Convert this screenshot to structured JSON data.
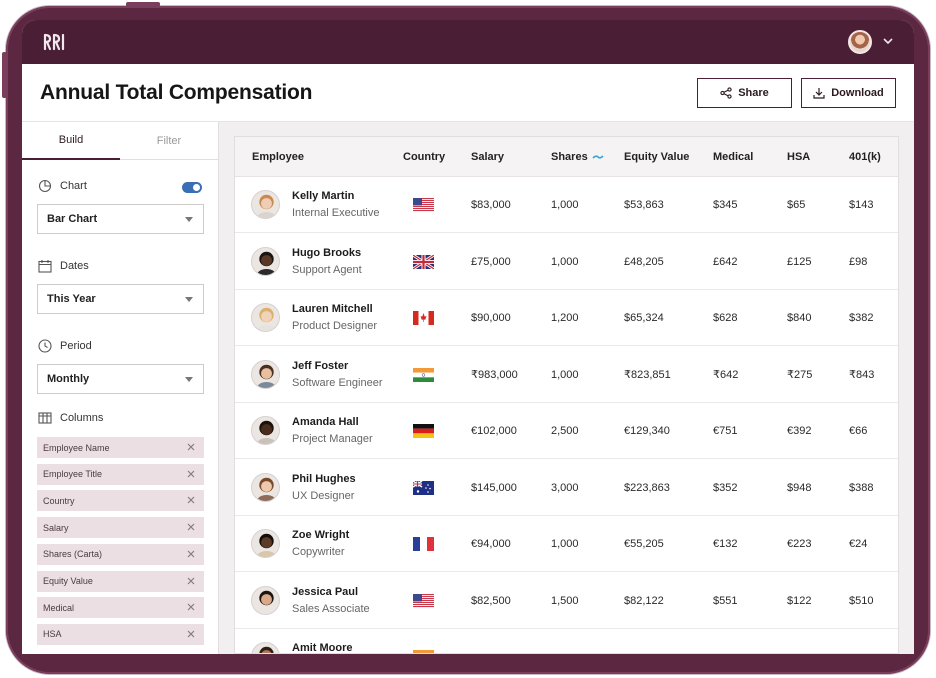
{
  "header": {
    "title": "Annual Total Compensation",
    "share_label": "Share",
    "download_label": "Download"
  },
  "sidebar": {
    "tabs": [
      "Build",
      "Filter"
    ],
    "chart_label": "Chart",
    "chart_toggle_on": true,
    "chart_value": "Bar Chart",
    "dates_label": "Dates",
    "dates_value": "This Year",
    "period_label": "Period",
    "period_value": "Monthly",
    "columns_label": "Columns",
    "columns": [
      "Employee Name",
      "Employee Title",
      "Country",
      "Salary",
      "Shares (Carta)",
      "Equity Value",
      "Medical",
      "HSA"
    ]
  },
  "table": {
    "headers": [
      "Employee",
      "Country",
      "Salary",
      "Shares",
      "Equity Value",
      "Medical",
      "HSA",
      "401(k)"
    ],
    "rows": [
      {
        "name": "Kelly Martin",
        "title": "Internal Executive",
        "country_flag": "us-flag-icon",
        "salary": "$83,000",
        "shares": "1,000",
        "equity": "$53,863",
        "medical": "$345",
        "hsa": "$65",
        "k401": "$143"
      },
      {
        "name": "Hugo Brooks",
        "title": "Support Agent",
        "country_flag": "uk-flag-icon",
        "salary": "£75,000",
        "shares": "1,000",
        "equity": "£48,205",
        "medical": "£642",
        "hsa": "£125",
        "k401": "£98"
      },
      {
        "name": "Lauren Mitchell",
        "title": "Product Designer",
        "country_flag": "canada-flag-icon",
        "salary": "$90,000",
        "shares": "1,200",
        "equity": "$65,324",
        "medical": "$628",
        "hsa": "$840",
        "k401": "$382"
      },
      {
        "name": "Jeff Foster",
        "title": "Software Engineer",
        "country_flag": "india-flag-icon",
        "salary": "₹983,000",
        "shares": "1,000",
        "equity": "₹823,851",
        "medical": "₹642",
        "hsa": "₹275",
        "k401": "₹843"
      },
      {
        "name": "Amanda Hall",
        "title": "Project Manager",
        "country_flag": "germany-flag-icon",
        "salary": "€102,000",
        "shares": "2,500",
        "equity": "€129,340",
        "medical": "€751",
        "hsa": "€392",
        "k401": "€66"
      },
      {
        "name": "Phil Hughes",
        "title": "UX Designer",
        "country_flag": "australia-flag-icon",
        "salary": "$145,000",
        "shares": "3,000",
        "equity": "$223,863",
        "medical": "$352",
        "hsa": "$948",
        "k401": "$388"
      },
      {
        "name": "Zoe Wright",
        "title": "Copywriter",
        "country_flag": "france-flag-icon",
        "salary": "€94,000",
        "shares": "1,000",
        "equity": "€55,205",
        "medical": "€132",
        "hsa": "€223",
        "k401": "€24"
      },
      {
        "name": "Jessica Paul",
        "title": "Sales Associate",
        "country_flag": "us-flag-icon",
        "salary": "$82,500",
        "shares": "1,500",
        "equity": "$82,122",
        "medical": "$551",
        "hsa": "$122",
        "k401": "$510"
      },
      {
        "name": "Amit Moore",
        "title": "",
        "country_flag": "india-flag-icon",
        "salary": "",
        "shares": "",
        "equity": "",
        "medical": "",
        "hsa": "",
        "k401": ""
      }
    ]
  },
  "colors": {
    "frame": "#5b2741",
    "topbar": "#4a1f36",
    "chip": "#ecdfe3",
    "toggle": "#3a6fb5"
  }
}
